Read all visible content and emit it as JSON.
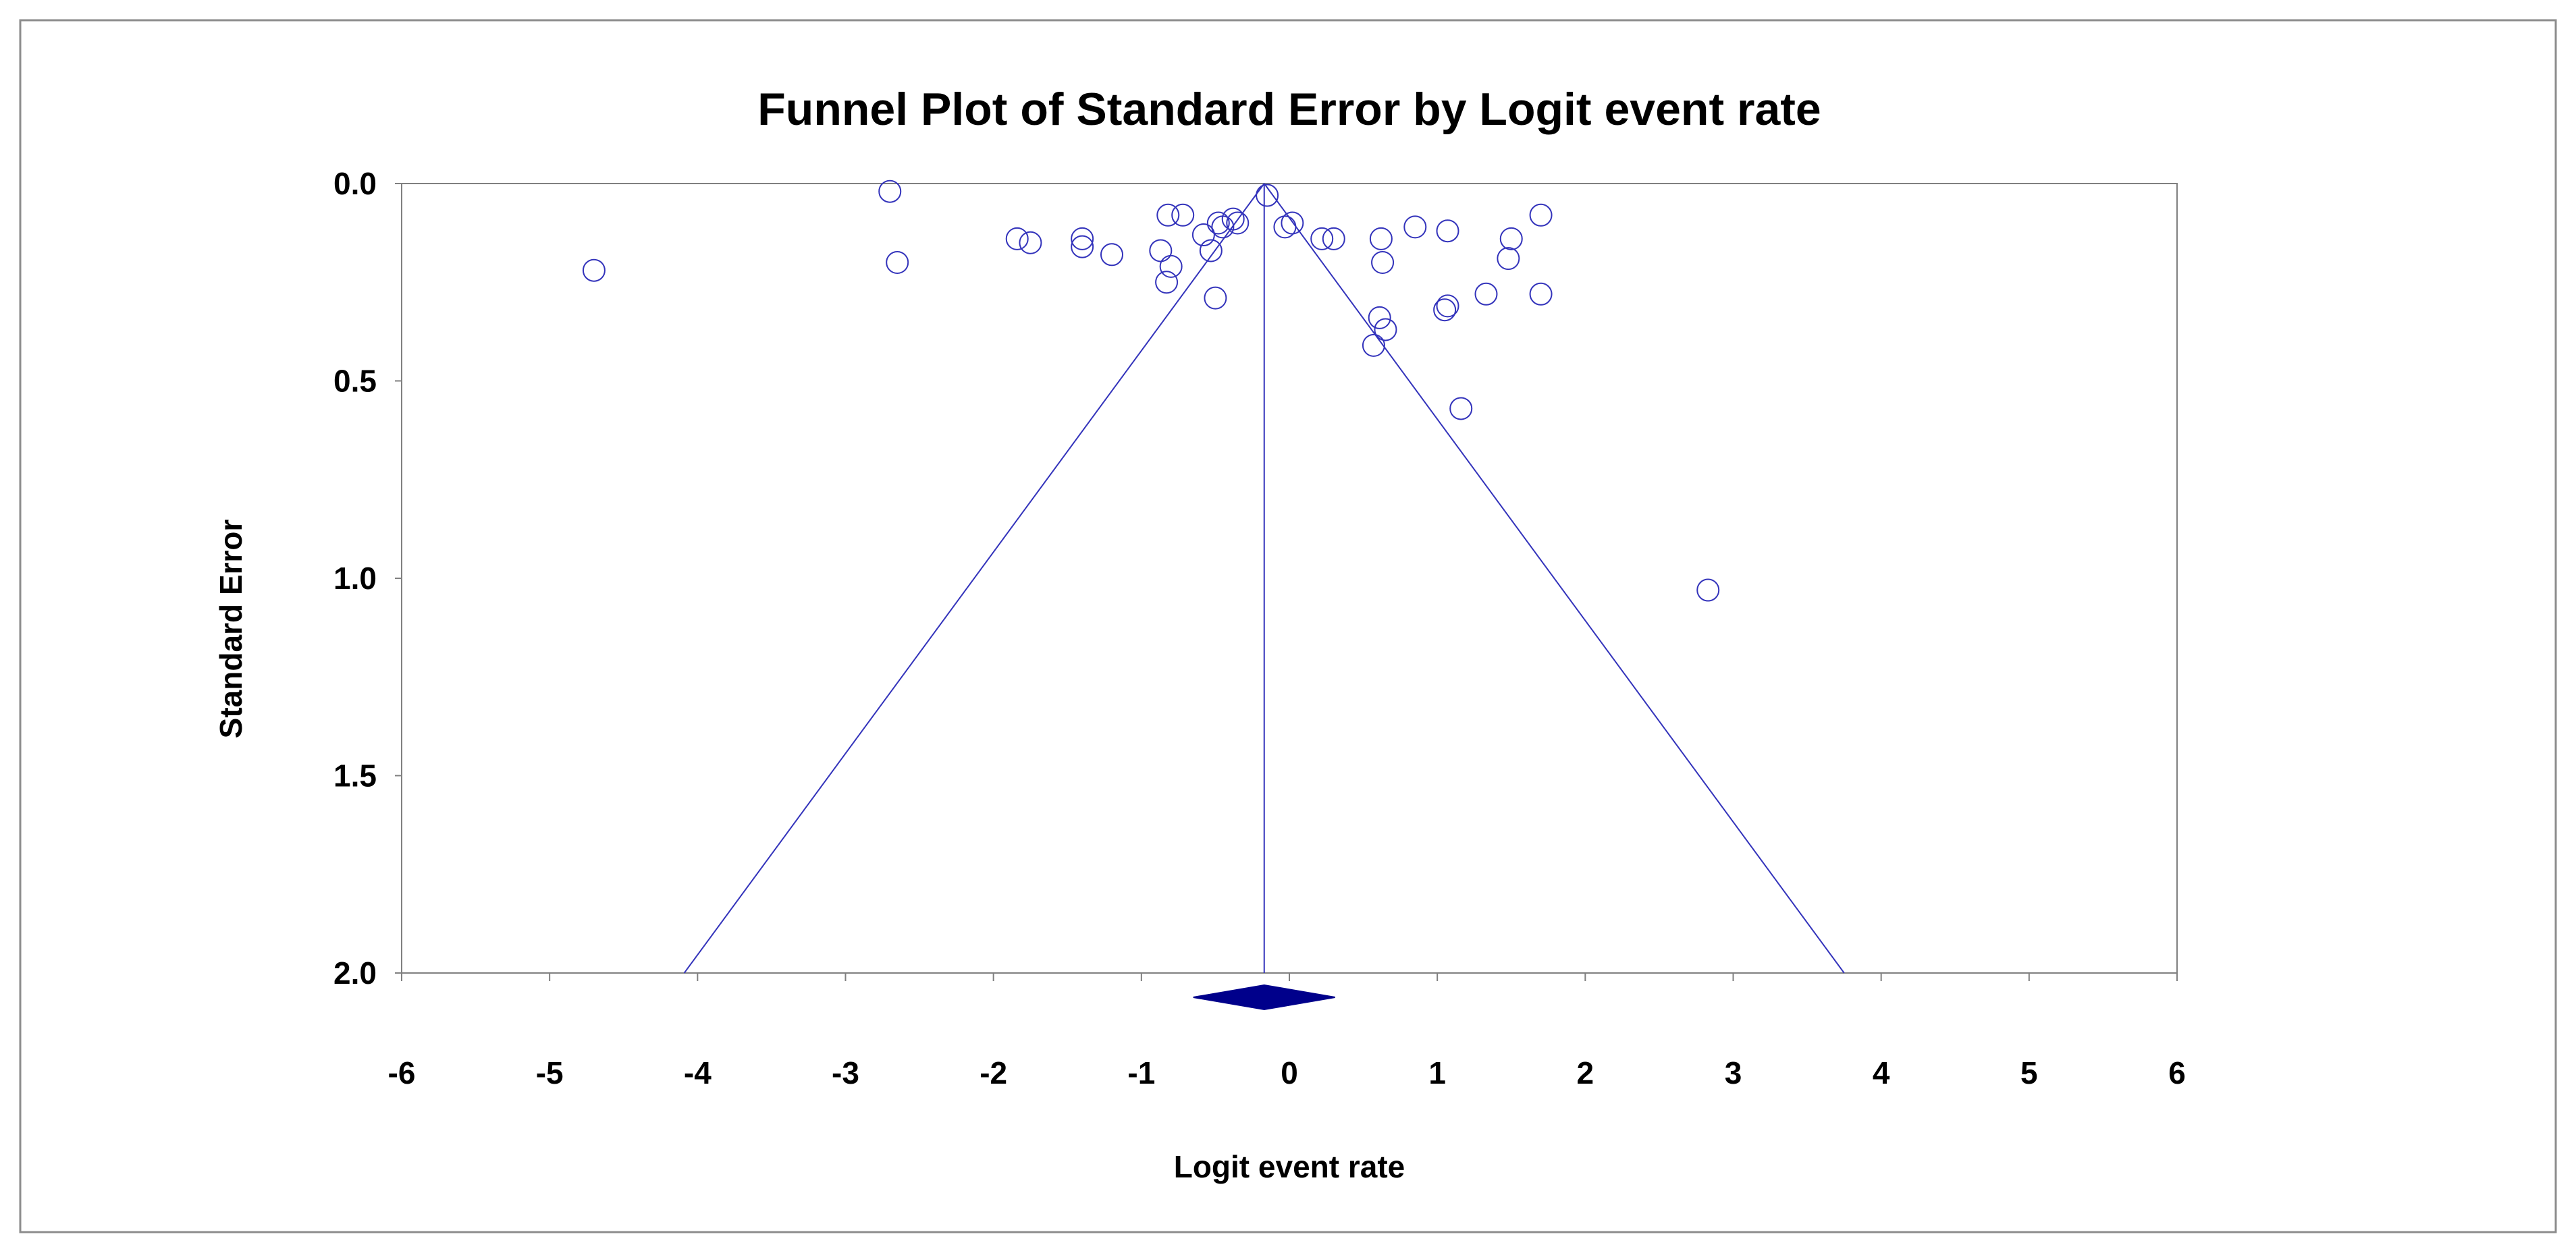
{
  "chart_data": {
    "type": "scatter",
    "title": "Funnel Plot of Standard Error by Logit event rate",
    "xlabel": "Logit event rate",
    "ylabel": "Standard Error",
    "xlim": [
      -6,
      6
    ],
    "ylim": [
      0,
      2
    ],
    "y_inverted": true,
    "x_ticks": [
      "-6",
      "-5",
      "-4",
      "-3",
      "-2",
      "-1",
      "0",
      "1",
      "2",
      "3",
      "4",
      "5",
      "6"
    ],
    "y_ticks": [
      "0.0",
      "0.5",
      "1.0",
      "1.5",
      "2.0"
    ],
    "grid": false,
    "legend": "none",
    "pooled_estimate": -0.17,
    "funnel_limits": {
      "lower_at_se_2": -4.09,
      "upper_at_se_2": 3.75
    },
    "points": [
      {
        "x": -4.7,
        "y": 0.22
      },
      {
        "x": -2.7,
        "y": 0.02
      },
      {
        "x": -2.65,
        "y": 0.2
      },
      {
        "x": -1.84,
        "y": 0.14
      },
      {
        "x": -1.75,
        "y": 0.15
      },
      {
        "x": -1.4,
        "y": 0.14
      },
      {
        "x": -1.4,
        "y": 0.16
      },
      {
        "x": -1.2,
        "y": 0.18
      },
      {
        "x": -0.87,
        "y": 0.17
      },
      {
        "x": -0.82,
        "y": 0.08
      },
      {
        "x": -0.8,
        "y": 0.21
      },
      {
        "x": -0.83,
        "y": 0.25
      },
      {
        "x": -0.72,
        "y": 0.08
      },
      {
        "x": -0.58,
        "y": 0.13
      },
      {
        "x": -0.53,
        "y": 0.17
      },
      {
        "x": -0.48,
        "y": 0.1
      },
      {
        "x": -0.45,
        "y": 0.11
      },
      {
        "x": -0.5,
        "y": 0.29
      },
      {
        "x": -0.38,
        "y": 0.09
      },
      {
        "x": -0.35,
        "y": 0.1
      },
      {
        "x": -0.15,
        "y": 0.03
      },
      {
        "x": -0.03,
        "y": 0.11
      },
      {
        "x": 0.02,
        "y": 0.1
      },
      {
        "x": 0.22,
        "y": 0.14
      },
      {
        "x": 0.3,
        "y": 0.14
      },
      {
        "x": 0.62,
        "y": 0.14
      },
      {
        "x": 0.63,
        "y": 0.2
      },
      {
        "x": 0.61,
        "y": 0.34
      },
      {
        "x": 0.65,
        "y": 0.37
      },
      {
        "x": 0.57,
        "y": 0.41
      },
      {
        "x": 0.85,
        "y": 0.11
      },
      {
        "x": 1.07,
        "y": 0.12
      },
      {
        "x": 1.05,
        "y": 0.32
      },
      {
        "x": 1.07,
        "y": 0.31
      },
      {
        "x": 1.16,
        "y": 0.57
      },
      {
        "x": 1.33,
        "y": 0.28
      },
      {
        "x": 1.48,
        "y": 0.19
      },
      {
        "x": 1.5,
        "y": 0.14
      },
      {
        "x": 1.7,
        "y": 0.08
      },
      {
        "x": 1.7,
        "y": 0.28
      },
      {
        "x": 2.83,
        "y": 1.03
      }
    ]
  }
}
